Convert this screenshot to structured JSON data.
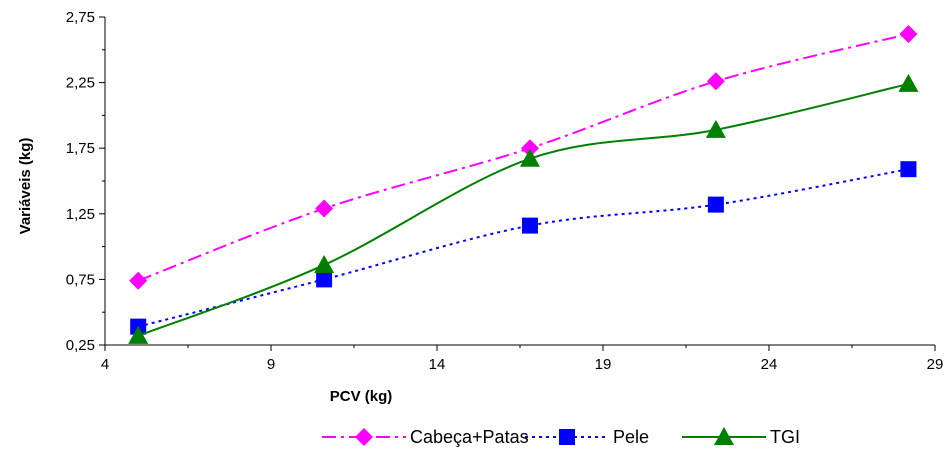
{
  "chart_data": {
    "type": "line",
    "xlabel": "PCV (kg)",
    "ylabel": "Variáveis (kg)",
    "xlim": [
      4,
      29
    ],
    "ylim": [
      0.25,
      2.75
    ],
    "x_ticks": [
      4,
      9,
      14,
      19,
      24,
      29
    ],
    "x_tick_labels": [
      "4",
      "9",
      "14",
      "19",
      "24",
      "29"
    ],
    "y_ticks": [
      0.25,
      0.75,
      1.25,
      1.75,
      2.25,
      2.75
    ],
    "y_tick_labels": [
      "0,25",
      "0,75",
      "1,25",
      "1,75",
      "2,25",
      "2,75"
    ],
    "grid": false,
    "legend_position": "bottom",
    "series": [
      {
        "name": "Cabeça+Patas",
        "color": "#ff00ff",
        "marker": "diamond",
        "line_style": "dashdot",
        "x": [
          5.0,
          10.6,
          16.8,
          22.4,
          28.2
        ],
        "y": [
          0.74,
          1.29,
          1.75,
          2.26,
          2.62
        ]
      },
      {
        "name": "Pele",
        "color": "#0000ff",
        "marker": "square",
        "line_style": "dotted",
        "x": [
          5.0,
          10.6,
          16.8,
          22.4,
          28.2
        ],
        "y": [
          0.39,
          0.75,
          1.16,
          1.32,
          1.59
        ]
      },
      {
        "name": "TGI",
        "color": "#008000",
        "marker": "triangle",
        "line_style": "solid",
        "x": [
          5.0,
          10.6,
          16.8,
          22.4,
          28.2
        ],
        "y": [
          0.32,
          0.86,
          1.67,
          1.89,
          2.24
        ]
      }
    ]
  }
}
